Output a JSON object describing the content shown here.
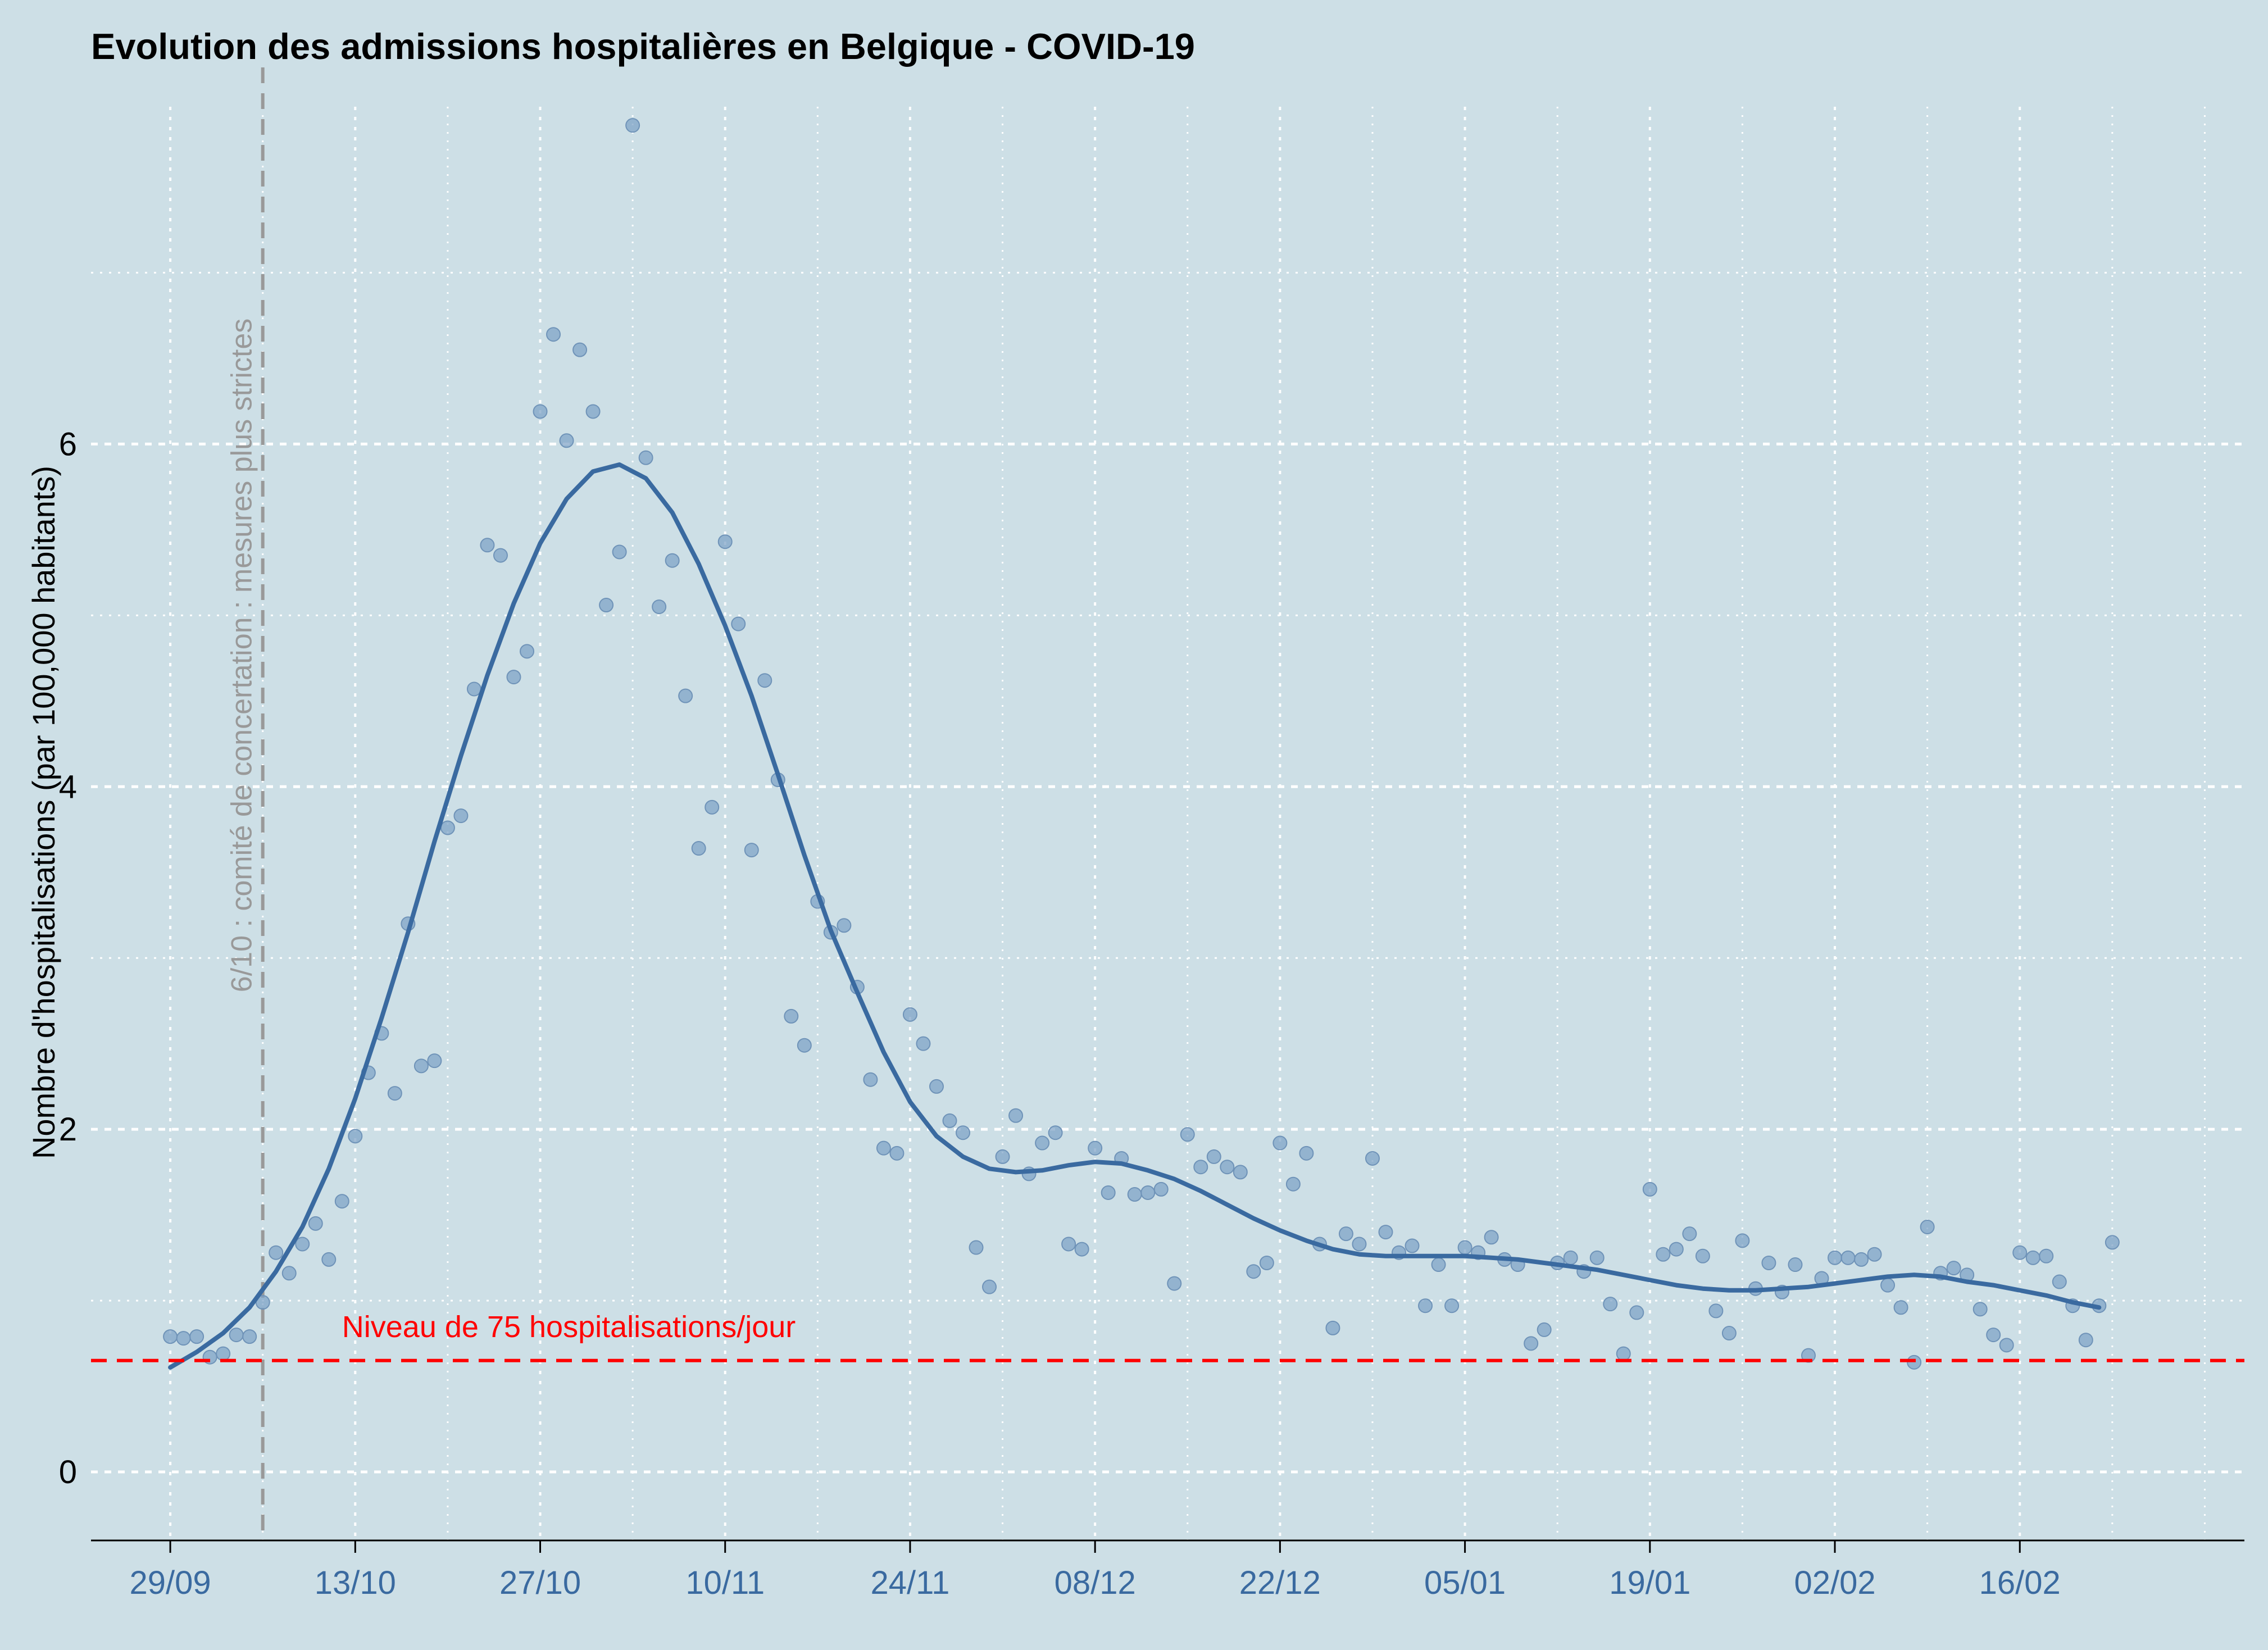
{
  "chart_data": {
    "type": "scatter",
    "title": "Evolution des admissions hospitalières en Belgique - COVID-19",
    "xlabel": "",
    "ylabel": "Nombre d'hospitalisations (par 100,000 habitants)",
    "xlim": [
      "2020-09-23",
      "2021-03-05"
    ],
    "ylim": [
      -0.4,
      8.1
    ],
    "grid": true,
    "x_ticks": [
      {
        "date": "2020-09-29",
        "label": "29/09"
      },
      {
        "date": "2020-10-13",
        "label": "13/10"
      },
      {
        "date": "2020-10-27",
        "label": "27/10"
      },
      {
        "date": "2020-11-10",
        "label": "10/11"
      },
      {
        "date": "2020-11-24",
        "label": "24/11"
      },
      {
        "date": "2020-12-08",
        "label": "08/12"
      },
      {
        "date": "2020-12-22",
        "label": "22/12"
      },
      {
        "date": "2021-01-05",
        "label": "05/01"
      },
      {
        "date": "2021-01-19",
        "label": "19/01"
      },
      {
        "date": "2021-02-02",
        "label": "02/02"
      },
      {
        "date": "2021-02-16",
        "label": "16/02"
      }
    ],
    "y_ticks": [
      {
        "value": 0,
        "label": "0"
      },
      {
        "value": 2,
        "label": "2"
      },
      {
        "value": 4,
        "label": "4"
      },
      {
        "value": 6,
        "label": "6"
      }
    ],
    "annotations": {
      "vline": {
        "date": "2020-10-06",
        "label": "6/10 : comité de concertation : mesures plus strictes",
        "color": "#999999"
      },
      "hline": {
        "value": 0.65,
        "label": "Niveau de 75 hospitalisations/jour",
        "color": "#ff0000"
      }
    },
    "colors": {
      "points": "#7a9fc4",
      "smooth": "#3a6aa0",
      "background": "#cddfe6",
      "tick_labels_x": "#3a6aa0"
    },
    "series": [
      {
        "kind": "points",
        "start_date": "2020-09-29",
        "values": [
          0.79,
          0.78,
          0.79,
          0.67,
          0.69,
          0.8,
          0.79,
          0.99,
          1.28,
          1.16,
          1.33,
          1.45,
          1.24,
          1.58,
          1.96,
          2.33,
          2.56,
          2.21,
          3.2,
          2.37,
          2.4,
          3.76,
          3.83,
          4.57,
          5.41,
          5.35,
          4.64,
          4.79,
          6.19,
          6.64,
          6.02,
          6.55,
          6.19,
          5.06,
          5.37,
          7.86,
          5.92,
          5.05,
          5.32,
          4.53,
          3.64,
          3.88,
          5.43,
          4.95,
          3.63,
          4.62,
          4.04,
          2.66,
          2.49,
          3.33,
          3.15,
          3.19,
          2.83,
          2.29,
          1.89,
          1.86,
          2.67,
          2.5,
          2.25,
          2.05,
          1.98,
          1.31,
          1.08,
          1.84,
          2.08,
          1.74,
          1.92,
          1.98,
          1.33,
          1.3,
          1.89,
          1.63,
          1.83,
          1.62,
          1.63,
          1.65,
          1.1,
          1.97,
          1.78,
          1.84,
          1.78,
          1.75,
          1.17,
          1.22,
          1.92,
          1.68,
          1.86,
          1.33,
          0.84,
          1.39,
          1.33,
          1.83,
          1.4,
          1.28,
          1.32,
          0.97,
          1.21,
          0.97,
          1.31,
          1.28,
          1.37,
          1.24,
          1.21,
          0.75,
          0.83,
          1.22,
          1.25,
          1.17,
          1.25,
          0.98,
          0.69,
          0.93,
          1.65,
          1.27,
          1.3,
          1.39,
          1.26,
          0.94,
          0.81,
          1.35,
          1.07,
          1.22,
          1.05,
          1.21,
          0.68,
          1.13,
          1.25,
          1.25,
          1.24,
          1.27,
          1.09,
          0.96,
          0.64,
          1.43,
          1.16,
          1.19,
          1.15,
          0.95,
          0.8,
          0.74,
          1.28,
          1.25,
          1.26,
          1.11,
          0.97,
          0.77,
          0.97,
          1.34
        ]
      },
      {
        "kind": "smooth",
        "points": [
          [
            "2020-09-29",
            0.61
          ],
          [
            "2020-10-01",
            0.7
          ],
          [
            "2020-10-03",
            0.81
          ],
          [
            "2020-10-05",
            0.96
          ],
          [
            "2020-10-07",
            1.17
          ],
          [
            "2020-10-09",
            1.43
          ],
          [
            "2020-10-11",
            1.77
          ],
          [
            "2020-10-13",
            2.18
          ],
          [
            "2020-10-15",
            2.65
          ],
          [
            "2020-10-17",
            3.15
          ],
          [
            "2020-10-19",
            3.68
          ],
          [
            "2020-10-21",
            4.18
          ],
          [
            "2020-10-23",
            4.65
          ],
          [
            "2020-10-25",
            5.07
          ],
          [
            "2020-10-27",
            5.42
          ],
          [
            "2020-10-29",
            5.68
          ],
          [
            "2020-10-31",
            5.84
          ],
          [
            "2020-11-02",
            5.88
          ],
          [
            "2020-11-04",
            5.8
          ],
          [
            "2020-11-06",
            5.6
          ],
          [
            "2020-11-08",
            5.3
          ],
          [
            "2020-11-10",
            4.94
          ],
          [
            "2020-11-12",
            4.53
          ],
          [
            "2020-11-14",
            4.07
          ],
          [
            "2020-11-16",
            3.6
          ],
          [
            "2020-11-18",
            3.16
          ],
          [
            "2020-11-20",
            2.8
          ],
          [
            "2020-11-22",
            2.45
          ],
          [
            "2020-11-24",
            2.16
          ],
          [
            "2020-11-26",
            1.96
          ],
          [
            "2020-11-28",
            1.84
          ],
          [
            "2020-11-30",
            1.77
          ],
          [
            "2020-12-02",
            1.75
          ],
          [
            "2020-12-04",
            1.76
          ],
          [
            "2020-12-06",
            1.79
          ],
          [
            "2020-12-08",
            1.81
          ],
          [
            "2020-12-10",
            1.8
          ],
          [
            "2020-12-12",
            1.76
          ],
          [
            "2020-12-14",
            1.71
          ],
          [
            "2020-12-16",
            1.64
          ],
          [
            "2020-12-18",
            1.56
          ],
          [
            "2020-12-20",
            1.48
          ],
          [
            "2020-12-22",
            1.41
          ],
          [
            "2020-12-24",
            1.35
          ],
          [
            "2020-12-26",
            1.3
          ],
          [
            "2020-12-28",
            1.27
          ],
          [
            "2020-12-30",
            1.26
          ],
          [
            "2021-01-01",
            1.26
          ],
          [
            "2021-01-03",
            1.26
          ],
          [
            "2021-01-05",
            1.26
          ],
          [
            "2021-01-07",
            1.25
          ],
          [
            "2021-01-09",
            1.24
          ],
          [
            "2021-01-11",
            1.22
          ],
          [
            "2021-01-13",
            1.2
          ],
          [
            "2021-01-15",
            1.18
          ],
          [
            "2021-01-17",
            1.15
          ],
          [
            "2021-01-19",
            1.12
          ],
          [
            "2021-01-21",
            1.09
          ],
          [
            "2021-01-23",
            1.07
          ],
          [
            "2021-01-25",
            1.06
          ],
          [
            "2021-01-27",
            1.06
          ],
          [
            "2021-01-29",
            1.07
          ],
          [
            "2021-01-31",
            1.08
          ],
          [
            "2021-02-02",
            1.1
          ],
          [
            "2021-02-04",
            1.12
          ],
          [
            "2021-02-06",
            1.14
          ],
          [
            "2021-02-08",
            1.15
          ],
          [
            "2021-02-10",
            1.14
          ],
          [
            "2021-02-12",
            1.11
          ],
          [
            "2021-02-14",
            1.09
          ],
          [
            "2021-02-16",
            1.06
          ],
          [
            "2021-02-18",
            1.03
          ],
          [
            "2021-02-20",
            0.99
          ],
          [
            "2021-02-22",
            0.96
          ]
        ]
      }
    ]
  }
}
